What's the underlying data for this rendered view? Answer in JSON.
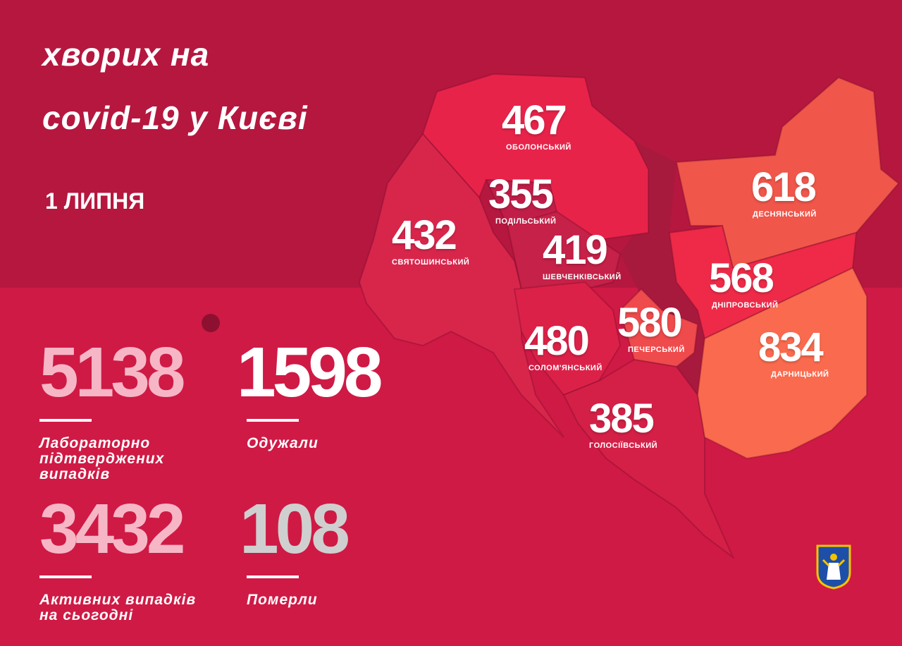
{
  "header": {
    "title_line1": "хворих на",
    "title_line2": "covid-19 у Києві",
    "date": "1 ЛИПНЯ"
  },
  "colors": {
    "background": "#b5173f",
    "lower_panel": "#cf1a45",
    "confirmed": "#f7b6c6",
    "recovered": "#ffffff",
    "active": "#f7b6c6",
    "deaths": "#cfcfcf"
  },
  "districts": [
    {
      "name": "ОБОЛОНСЬКИЙ",
      "value": "467",
      "color": "#e8234a"
    },
    {
      "name": "ПОДІЛЬСЬКИЙ",
      "value": "355",
      "color": "#c01e48"
    },
    {
      "name": "СВЯТОШИНСЬКИЙ",
      "value": "432",
      "color": "#d8264b"
    },
    {
      "name": "ШЕВЧЕНКІВСЬКИЙ",
      "value": "419",
      "color": "#c62148"
    },
    {
      "name": "СОЛОМ'ЯНСЬКИЙ",
      "value": "480",
      "color": "#dc2148"
    },
    {
      "name": "ПЕЧЕРСЬКИЙ",
      "value": "580",
      "color": "#ef4a4c"
    },
    {
      "name": "ГОЛОСІЇВСЬКИЙ",
      "value": "385",
      "color": "#d42047"
    },
    {
      "name": "ДЕСНЯНСЬКИЙ",
      "value": "618",
      "color": "#f0564a"
    },
    {
      "name": "ДНІПРОВСЬКИЙ",
      "value": "568",
      "color": "#ee2a48"
    },
    {
      "name": "ДАРНИЦЬКИЙ",
      "value": "834",
      "color": "#fa6a4e"
    }
  ],
  "stats": {
    "confirmed": {
      "value": "5138",
      "label1": "Лабораторно",
      "label2": "підтверджених",
      "label3": "випадків"
    },
    "recovered": {
      "value": "1598",
      "label1": "Одужали"
    },
    "active": {
      "value": "3432",
      "label1": "Активних випадків",
      "label2": "на сьогодні"
    },
    "deaths": {
      "value": "108",
      "label1": "Померли"
    }
  },
  "icons": {
    "virus": "virus-icon",
    "logo": "kyiv-coat-of-arms"
  }
}
